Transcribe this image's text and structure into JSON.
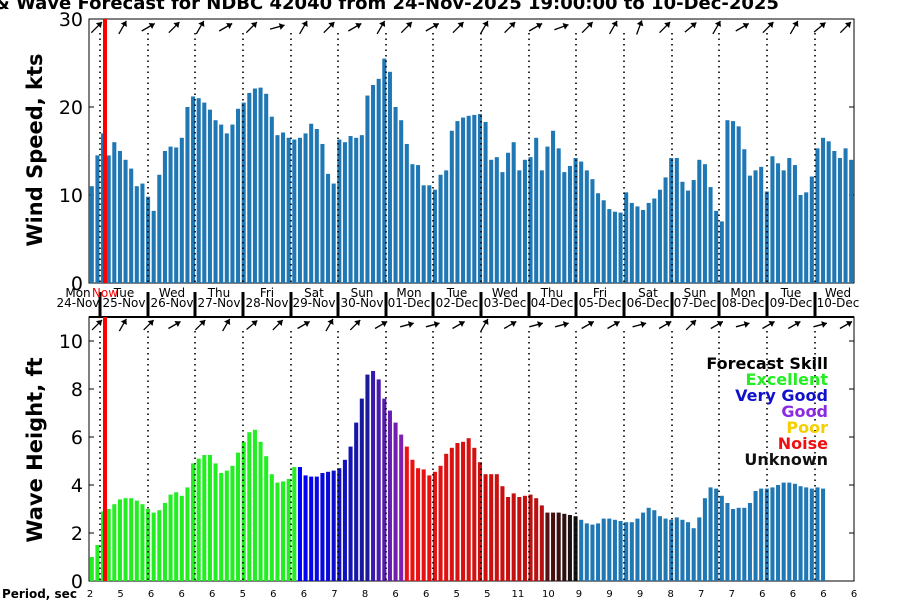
{
  "chart_data": [
    {
      "type": "bar",
      "title": "& Wave Forecast for NDBC 42040 from 24-Nov-2025 19:00:00 to 10-Dec-2025",
      "ylabel": "Wind Speed, kts",
      "ylim": [
        0,
        30
      ],
      "yticks": [
        "0",
        "10",
        "20",
        "30"
      ],
      "color": "#1f77b4",
      "values": [
        11,
        14.5,
        17,
        14.5,
        16,
        15,
        14,
        13,
        11,
        11.3,
        9.8,
        8.2,
        12.3,
        15,
        15.5,
        15.4,
        16.5,
        20,
        21.2,
        21,
        20.5,
        19.7,
        18.5,
        18,
        17,
        18,
        19.8,
        20.5,
        21.6,
        22.1,
        22.2,
        21.5,
        18.9,
        16.8,
        17.1,
        16.5,
        16.3,
        16.5,
        17,
        18.1,
        17.5,
        15.8,
        12.4,
        11.3,
        16.3,
        16,
        16.7,
        16.5,
        16.8,
        21.3,
        22.5,
        23.2,
        25.5,
        24,
        20,
        18.5,
        15.8,
        13.5,
        13.4,
        11.1,
        11.1,
        10.6,
        12.3,
        12.8,
        17.3,
        18.4,
        18.8,
        19,
        19.1,
        19.2,
        18.3,
        14,
        14.3,
        12.6,
        14.8,
        16,
        12.8,
        14,
        14.3,
        16.5,
        12.8,
        15.5,
        17.3,
        15.3,
        12.6,
        13.3,
        14.2,
        13.8,
        12.8,
        11.8,
        10.2,
        9.4,
        8.4,
        8.1,
        8,
        10.3,
        9.1,
        8.7,
        8.3,
        9.1,
        9.6,
        10.6,
        12,
        14.2,
        14.2,
        11.5,
        10.5,
        11.7,
        14,
        13.5,
        10.9,
        8.2,
        7,
        18.5,
        18.4,
        17.8,
        15.2,
        12.2,
        12.8,
        13.2,
        10.4,
        14.4,
        13.6,
        12.8,
        14.2,
        13.4,
        10,
        10.3,
        12.1,
        15.3,
        16.5,
        16.1,
        15,
        14.2,
        15.3,
        14
      ]
    },
    {
      "type": "bar",
      "ylabel": "Wave Height, ft",
      "ylim": [
        0,
        11
      ],
      "yticks": [
        "0",
        "2",
        "4",
        "6",
        "8",
        "10"
      ],
      "values": [
        1,
        1.5,
        2.9,
        3,
        3.2,
        3.4,
        3.45,
        3.45,
        3.35,
        3.2,
        3,
        2.85,
        2.95,
        3.25,
        3.6,
        3.7,
        3.55,
        3.9,
        4.9,
        5.1,
        5.25,
        5.25,
        4.9,
        4.5,
        4.6,
        4.8,
        5.35,
        5.8,
        6.2,
        6.3,
        5.8,
        5.2,
        4.45,
        4.1,
        4.15,
        4.25,
        4.75,
        4.75,
        4.4,
        4.35,
        4.35,
        4.5,
        4.55,
        4.6,
        4.7,
        5.05,
        5.6,
        6.6,
        7.6,
        8.6,
        8.75,
        8.4,
        7.6,
        7.1,
        6.6,
        6.1,
        5.6,
        5.05,
        4.7,
        4.65,
        4.4,
        4.55,
        4.8,
        5.3,
        5.55,
        5.75,
        5.8,
        5.95,
        5.55,
        4.95,
        4.45,
        4.45,
        4.45,
        3.95,
        3.5,
        3.65,
        3.5,
        3.55,
        3.6,
        3.45,
        3.15,
        2.85,
        2.85,
        2.85,
        2.8,
        2.75,
        2.7,
        2.55,
        2.4,
        2.35,
        2.4,
        2.6,
        2.6,
        2.55,
        2.5,
        2.45,
        2.45,
        2.6,
        2.85,
        3.05,
        2.95,
        2.7,
        2.6,
        2.55,
        2.65,
        2.55,
        2.45,
        2.2,
        2.65,
        3.45,
        3.9,
        3.85,
        3.55,
        3.25,
        3,
        3.05,
        3.05,
        3.25,
        3.75,
        3.85,
        3.85,
        3.9,
        4,
        4.1,
        4.1,
        4.05,
        3.95,
        3.9,
        3.85,
        3.9,
        3.85
      ],
      "skill_runs": [
        {
          "skill": "Excellent",
          "count": 37
        },
        {
          "skill": "Very Good",
          "count": 13
        },
        {
          "skill": "Good",
          "count": 6
        },
        {
          "skill": "Noise",
          "count": 25
        },
        {
          "skill": "Unknown",
          "count": 6
        },
        {
          "skill": "none",
          "count": 45
        }
      ],
      "base_color": "#1f77b4"
    }
  ],
  "legend": {
    "title": "Forecast Skill",
    "items": [
      {
        "label": "Excellent",
        "color": "#22ee22"
      },
      {
        "label": "Very Good",
        "color": "#1111cc"
      },
      {
        "label": "Good",
        "color": "#8a2be2"
      },
      {
        "label": "Poor",
        "color": "#f5d000"
      },
      {
        "label": "Noise",
        "color": "#ee1111"
      },
      {
        "label": "Unknown",
        "color": "#111111"
      }
    ]
  },
  "days": [
    {
      "dow": "Mon",
      "date": "24-Nov"
    },
    {
      "dow": "Tue",
      "date": "25-Nov"
    },
    {
      "dow": "Wed",
      "date": "26-Nov"
    },
    {
      "dow": "Thu",
      "date": "27-Nov"
    },
    {
      "dow": "Fri",
      "date": "28-Nov"
    },
    {
      "dow": "Sat",
      "date": "29-Nov"
    },
    {
      "dow": "Sun",
      "date": "30-Nov"
    },
    {
      "dow": "Mon",
      "date": "01-Dec"
    },
    {
      "dow": "Tue",
      "date": "02-Dec"
    },
    {
      "dow": "Wed",
      "date": "03-Dec"
    },
    {
      "dow": "Thu",
      "date": "04-Dec"
    },
    {
      "dow": "Fri",
      "date": "05-Dec"
    },
    {
      "dow": "Sat",
      "date": "06-Dec"
    },
    {
      "dow": "Sun",
      "date": "07-Dec"
    },
    {
      "dow": "Mon",
      "date": "08-Dec"
    },
    {
      "dow": "Tue",
      "date": "09-Dec"
    },
    {
      "dow": "Wed",
      "date": "10-Dec"
    }
  ],
  "now_label": "Now",
  "now_color": "#ff0000",
  "period_label": "Period, sec",
  "periods": [
    "2",
    "5",
    "6",
    "6",
    "6",
    "5",
    "6",
    "6",
    "7",
    "8",
    "6",
    "6",
    "5",
    "5",
    "11",
    "10",
    "9",
    "9",
    "9",
    "8",
    "7",
    "7",
    "6",
    "6",
    "6",
    "6"
  ],
  "wind_dirs_deg": [
    315,
    300,
    330,
    315,
    300,
    330,
    315,
    345,
    300,
    315,
    330,
    300,
    315,
    330,
    315,
    300,
    315,
    330,
    340,
    315,
    300,
    290,
    315,
    320,
    300,
    330,
    315,
    300,
    320,
    315
  ],
  "wave_dirs_deg": [
    315,
    300,
    315,
    330,
    315,
    300,
    320,
    315,
    330,
    300,
    315,
    330,
    345,
    345,
    330,
    300,
    330,
    345,
    345,
    330,
    330,
    345,
    330,
    315,
    330,
    345,
    330,
    330,
    345,
    330
  ]
}
